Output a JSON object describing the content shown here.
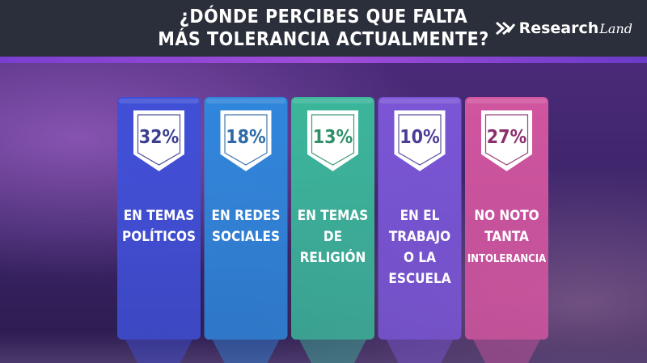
{
  "header": {
    "title_line1": "¿DÓNDE PERCIBES QUE FALTA",
    "title_line2": "MÁS TOLERANCIA ACTUALMENTE?",
    "logo_text": "Research",
    "logo_script": "Land"
  },
  "chart_data": {
    "type": "bar",
    "title": "¿DÓNDE PERCIBES QUE FALTA MÁS TOLERANCIA ACTUALMENTE?",
    "categories": [
      [
        "EN TEMAS",
        "POLÍTICOS"
      ],
      [
        "EN REDES",
        "SOCIALES"
      ],
      [
        "EN TEMAS",
        "DE",
        "RELIGIÓN"
      ],
      [
        "EN EL",
        "TRABAJO",
        "O LA",
        "ESCUELA"
      ],
      [
        "NO NOTO",
        "TANTA",
        "INTOLERANCIA"
      ]
    ],
    "values": [
      32,
      18,
      13,
      10,
      27
    ],
    "labels": [
      "32%",
      "18%",
      "13%",
      "10%",
      "27%"
    ],
    "unit": "%",
    "colors": [
      "#3f4fd6",
      "#2f86db",
      "#3bb69a",
      "#7a56d6",
      "#d1559f"
    ],
    "text_colors": [
      "#3a3f8f",
      "#2f6aa6",
      "#2f8f6a",
      "#4b3e96",
      "#8a2f6e"
    ],
    "grid": false
  }
}
